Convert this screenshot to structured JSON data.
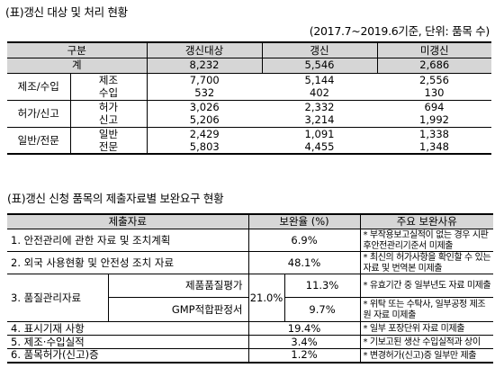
{
  "table1": {
    "caption": "(표)갱신 대상 및 처리 현황",
    "note": "(2017.7~2019.6기준, 단위: 품목 수)",
    "headers": [
      "구분",
      "갱신대상",
      "갱신",
      "미갱신"
    ],
    "total": {
      "label": "계",
      "values": [
        "8,232",
        "5,546",
        "2,686"
      ]
    },
    "groups": [
      {
        "label": "제조/수입",
        "rows": [
          {
            "label": "제조",
            "values": [
              "7,700",
              "5,144",
              "2,556"
            ]
          },
          {
            "label": "수입",
            "values": [
              "532",
              "402",
              "130"
            ]
          }
        ]
      },
      {
        "label": "허가/신고",
        "rows": [
          {
            "label": "허가",
            "values": [
              "3,026",
              "2,332",
              "694"
            ]
          },
          {
            "label": "신고",
            "values": [
              "5,206",
              "3,214",
              "1,992"
            ]
          }
        ]
      },
      {
        "label": "일반/전문",
        "rows": [
          {
            "label": "일반",
            "values": [
              "2,429",
              "1,091",
              "1,338"
            ]
          },
          {
            "label": "전문",
            "values": [
              "5,803",
              "4,455",
              "1,348"
            ]
          }
        ]
      }
    ]
  },
  "table2": {
    "caption": "(표)갱신 신청 품목의 제출자료별 보완요구 현황",
    "headers": [
      "제출자료",
      "보완율 (%)",
      "주요 보완사유"
    ],
    "rows": [
      {
        "label": "1. 안전관리에 관한 자료 및 조치계획",
        "rate": "6.9%",
        "reason": "* 부작용보고실적이 없는 경우 시판후안전관리기준서 미제출"
      },
      {
        "label": "2. 외국 사용현황 및 안전성 조치 자료",
        "rate": "48.1%",
        "reason": "* 최신의 허가사항을 확인할 수 있는 자료 및 번역본 미제출"
      },
      {
        "label": "3. 품질관리자료",
        "rate": "21.0%",
        "sub": [
          {
            "label": "제품품질평가",
            "rate": "11.3%",
            "reason": "* 유효기간 중 일부년도 자료 미제출"
          },
          {
            "label": "GMP적합판정서",
            "rate": "9.7%",
            "reason": "* 위탁 또는 수탁사, 일부공정 제조원 자료 미제출"
          }
        ]
      },
      {
        "label": "4. 표시기재 사항",
        "rate": "19.4%",
        "reason": "* 일부 포장단위 자료 미제출"
      },
      {
        "label": "5. 제조·수입실적",
        "rate": "3.4%",
        "reason": "* 기보고된 생산 수입실적과 상이"
      },
      {
        "label": "6. 품목허가(신고)증",
        "rate": "1.2%",
        "reason": "* 변경허가(신고)증 일부만 제출"
      }
    ]
  }
}
